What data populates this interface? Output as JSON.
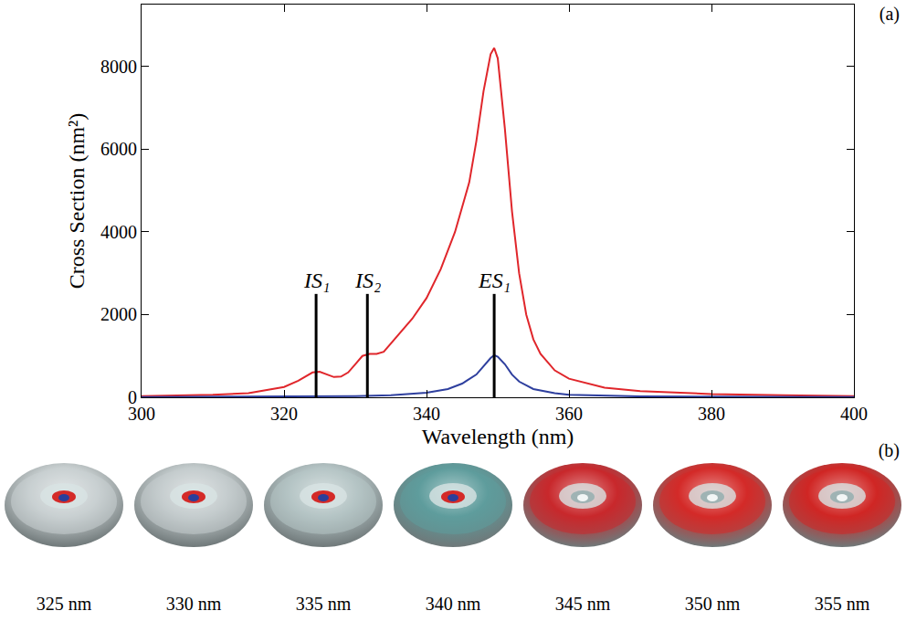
{
  "chart_data": {
    "type": "line",
    "x_label": "Wavelength (nm)",
    "y_label": "Cross Section (nm²)",
    "xlim": [
      300,
      400
    ],
    "xticks": [
      300,
      320,
      340,
      360,
      380,
      400
    ],
    "ylim": [
      0,
      9500
    ],
    "yticks": [
      0,
      2000,
      4000,
      6000,
      8000
    ],
    "grid": false,
    "series": [
      {
        "color": "#e0262b",
        "x": [
          300,
          310,
          315,
          320,
          322,
          324,
          325,
          326,
          327,
          328,
          329,
          330,
          331,
          332,
          333,
          334,
          335,
          336,
          338,
          340,
          342,
          344,
          346,
          347,
          348,
          349,
          349.5,
          350,
          351,
          352,
          353,
          354,
          355,
          356,
          358,
          360,
          365,
          370,
          380,
          390,
          400
        ],
        "values": [
          30,
          60,
          100,
          250,
          400,
          600,
          620,
          560,
          490,
          500,
          600,
          800,
          1000,
          1050,
          1050,
          1100,
          1300,
          1500,
          1900,
          2400,
          3100,
          4000,
          5200,
          6200,
          7400,
          8300,
          8450,
          8200,
          6500,
          4500,
          3000,
          2000,
          1400,
          1050,
          650,
          450,
          230,
          150,
          80,
          50,
          30
        ]
      },
      {
        "color": "#2e3f9e",
        "x": [
          300,
          320,
          330,
          335,
          340,
          343,
          345,
          347,
          348,
          349,
          349.5,
          350,
          351,
          352,
          353,
          355,
          358,
          360,
          370,
          380,
          400
        ],
        "values": [
          5,
          15,
          30,
          50,
          110,
          200,
          330,
          550,
          750,
          950,
          1020,
          980,
          800,
          550,
          380,
          200,
          100,
          60,
          20,
          10,
          5
        ]
      }
    ],
    "markers": [
      {
        "label": "IS₁",
        "x": 324.5,
        "height": 2500
      },
      {
        "label": "IS₂",
        "x": 331.7,
        "height": 2500
      },
      {
        "label": "ES₁",
        "x": 349.5,
        "height": 2500
      }
    ],
    "panel_labels": [
      "(a)",
      "(b)"
    ],
    "images": [
      {
        "label": "325 nm",
        "color": "#c9d0d1"
      },
      {
        "label": "330 nm",
        "color": "#c4cccd"
      },
      {
        "label": "335 nm",
        "color": "#b5c4c5"
      },
      {
        "label": "340 nm",
        "color": "#5e9c9c"
      },
      {
        "label": "345 nm",
        "color": "#c8282c"
      },
      {
        "label": "350 nm",
        "color": "#d42a28"
      },
      {
        "label": "355 nm",
        "color": "#d02624"
      }
    ]
  }
}
